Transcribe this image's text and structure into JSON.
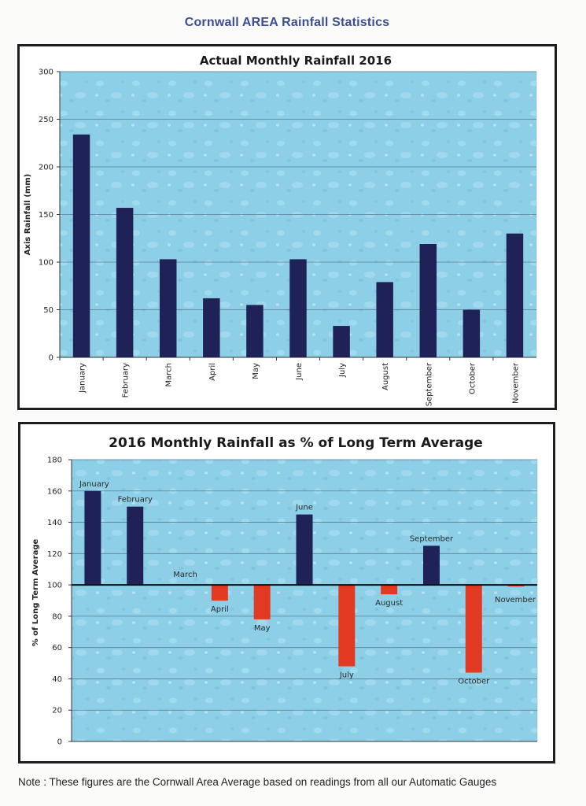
{
  "page": {
    "title": "Cornwall AREA Rainfall Statistics",
    "note": "Note : These figures are the Cornwall Area Average based on readings from all our Automatic Gauges"
  },
  "colors": {
    "plot_background": "#8ccfe6",
    "bar_main": "#1f2257",
    "bar_below": "#e23a22",
    "gridline": "#5f7d8f",
    "title_blue": "#3c4f94"
  },
  "chart_data": [
    {
      "type": "bar",
      "title": "Actual Monthly Rainfall 2016",
      "xlabel": "",
      "ylabel": "Axis Rainfall (mm)",
      "categories": [
        "January",
        "February",
        "March",
        "April",
        "May",
        "June",
        "July",
        "August",
        "September",
        "October",
        "November"
      ],
      "values": [
        234,
        157,
        103,
        62,
        55,
        103,
        33,
        79,
        119,
        50,
        130
      ],
      "ylim": [
        0,
        300
      ],
      "yticks": [
        0,
        50,
        100,
        150,
        200,
        250,
        300
      ],
      "grid": true,
      "legend": "none",
      "tick_label_orientation": "vertical"
    },
    {
      "type": "bar",
      "title": "2016 Monthly Rainfall as % of Long Term Average",
      "xlabel": "",
      "ylabel": "% of Long Term Average",
      "categories": [
        "January",
        "February",
        "March",
        "April",
        "May",
        "June",
        "July",
        "August",
        "September",
        "October",
        "November"
      ],
      "values": [
        160,
        150,
        100,
        90,
        78,
        145,
        48,
        94,
        125,
        44,
        99
      ],
      "baseline": 100,
      "ylim": [
        0,
        180
      ],
      "yticks": [
        0,
        20,
        40,
        60,
        80,
        100,
        120,
        140,
        160,
        180
      ],
      "grid": true,
      "legend": "none",
      "data_labels": "category names"
    }
  ]
}
